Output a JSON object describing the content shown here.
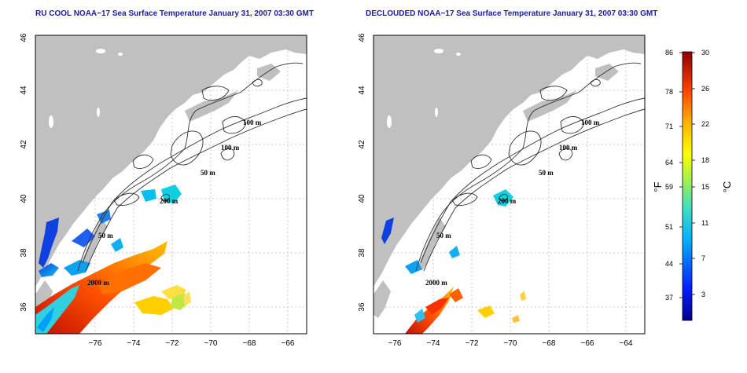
{
  "panels": [
    {
      "id": "left",
      "title": "RU COOL NOAA−17 Sea Surface Temperature January 31, 2007 03:30 GMT",
      "contour_labels": [
        "100 m",
        "100 m",
        "50 m",
        "200 m",
        "50 m",
        "2000 m"
      ]
    },
    {
      "id": "right",
      "title": "DECLOUDED NOAA−17 Sea Surface Temperature January 31, 2007 03:30 GMT",
      "contour_labels": [
        "100 m",
        "100 m",
        "50 m",
        "200 m",
        "50 m",
        "2000 m"
      ]
    }
  ],
  "map_axes": {
    "x_ticks": [
      "−76",
      "−74",
      "−72",
      "−70",
      "−68",
      "−66",
      "−64"
    ],
    "y_ticks": [
      "36",
      "38",
      "40",
      "42",
      "44",
      "46"
    ],
    "xlim": [
      -77,
      -63
    ],
    "ylim": [
      35,
      46
    ]
  },
  "colorbar": {
    "fahrenheit_ticks": [
      "86",
      "78",
      "71",
      "64",
      "59",
      "51",
      "44",
      "37"
    ],
    "celsius_ticks": [
      "30",
      "26",
      "22",
      "18",
      "15",
      "11",
      "7",
      "3"
    ],
    "fahrenheit_unit": "°F",
    "celsius_unit": "°C",
    "range_c": [
      0,
      30
    ]
  },
  "colors": {
    "land": "#c0c0c0",
    "title": "#1a1aa8",
    "grid": "#bbbbbb"
  }
}
